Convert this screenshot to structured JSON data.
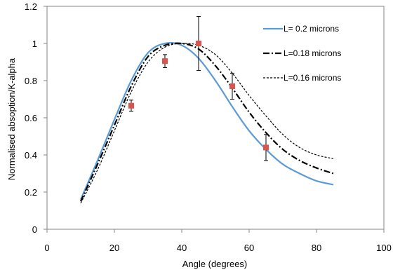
{
  "chart_data": {
    "type": "line",
    "title": "",
    "xlabel": "Angle (degrees)",
    "ylabel": "Normalised absoption/K-alpha",
    "xlim": [
      0,
      100
    ],
    "ylim": [
      0,
      1.2
    ],
    "x_ticks": [
      "0",
      "20",
      "40",
      "60",
      "80",
      "100"
    ],
    "y_ticks": [
      "0",
      "0.2",
      "0.4",
      "0.6",
      "0.8",
      "1",
      "1.2"
    ],
    "x_tick_values": [
      0,
      20,
      40,
      60,
      80,
      100
    ],
    "y_tick_values": [
      0,
      0.2,
      0.4,
      0.6,
      0.8,
      1.0,
      1.2
    ],
    "grid": false,
    "legend_position": "top-right",
    "series": [
      {
        "name": "L= 0.2 microns",
        "style": "solid",
        "color": "#5b9bd5",
        "x": [
          10,
          15,
          20,
          25,
          30,
          35,
          40,
          45,
          50,
          55,
          60,
          65,
          70,
          75,
          80,
          85
        ],
        "y": [
          0.16,
          0.37,
          0.59,
          0.8,
          0.95,
          1.0,
          0.99,
          0.92,
          0.8,
          0.66,
          0.53,
          0.43,
          0.35,
          0.3,
          0.26,
          0.24
        ]
      },
      {
        "name": "L=0.18 microns",
        "style": "dashdot",
        "color": "#000000",
        "x": [
          10,
          15,
          20,
          25,
          30,
          35,
          40,
          45,
          50,
          55,
          60,
          65,
          70,
          75,
          80,
          85
        ],
        "y": [
          0.15,
          0.35,
          0.56,
          0.77,
          0.93,
          0.99,
          1.0,
          0.97,
          0.88,
          0.76,
          0.63,
          0.52,
          0.43,
          0.37,
          0.33,
          0.3
        ]
      },
      {
        "name": "L=0.16 microns",
        "style": "dotted",
        "color": "#000000",
        "x": [
          10,
          15,
          20,
          25,
          30,
          35,
          40,
          45,
          50,
          55,
          60,
          65,
          70,
          75,
          80,
          85
        ],
        "y": [
          0.14,
          0.32,
          0.53,
          0.74,
          0.9,
          0.98,
          1.0,
          0.99,
          0.94,
          0.84,
          0.72,
          0.61,
          0.51,
          0.44,
          0.4,
          0.38
        ]
      }
    ],
    "measurements": {
      "marker_color": "#d9534f",
      "points": [
        {
          "x": 25,
          "y": 0.665,
          "err": 0.03
        },
        {
          "x": 35,
          "y": 0.905,
          "err": 0.035
        },
        {
          "x": 45,
          "y": 1.0,
          "err": 0.145
        },
        {
          "x": 55,
          "y": 0.77,
          "err": 0.07
        },
        {
          "x": 65,
          "y": 0.44,
          "err": 0.07
        }
      ]
    }
  }
}
